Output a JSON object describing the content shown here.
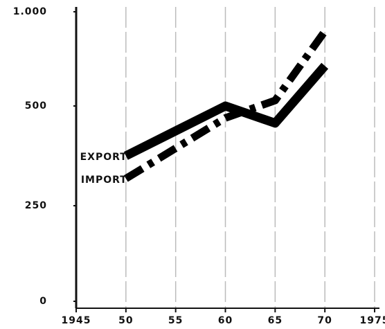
{
  "chart_data": {
    "type": "line",
    "x": [
      1950,
      1960,
      1965,
      1970
    ],
    "series": [
      {
        "name": "EXPORT",
        "color": "#000000",
        "style": "solid",
        "values": [
          375,
          500,
          457,
          713
        ]
      },
      {
        "name": "IMPORT",
        "color": "#000000",
        "style": "dash-dot",
        "values": [
          318,
          470,
          529,
          897
        ]
      }
    ],
    "xlim": [
      1945,
      1975
    ],
    "xticks": [
      1945,
      {
        "value": 1950,
        "label": "50"
      },
      {
        "value": 1955,
        "label": "55"
      },
      {
        "value": 1960,
        "label": "60"
      },
      {
        "value": 1965,
        "label": "65"
      },
      {
        "value": 1970,
        "label": "70"
      },
      1975
    ],
    "ylim": [
      0,
      1000
    ],
    "yticks": [
      0,
      250,
      500,
      {
        "value": 1000,
        "label": "1.000"
      }
    ],
    "grid": true
  }
}
